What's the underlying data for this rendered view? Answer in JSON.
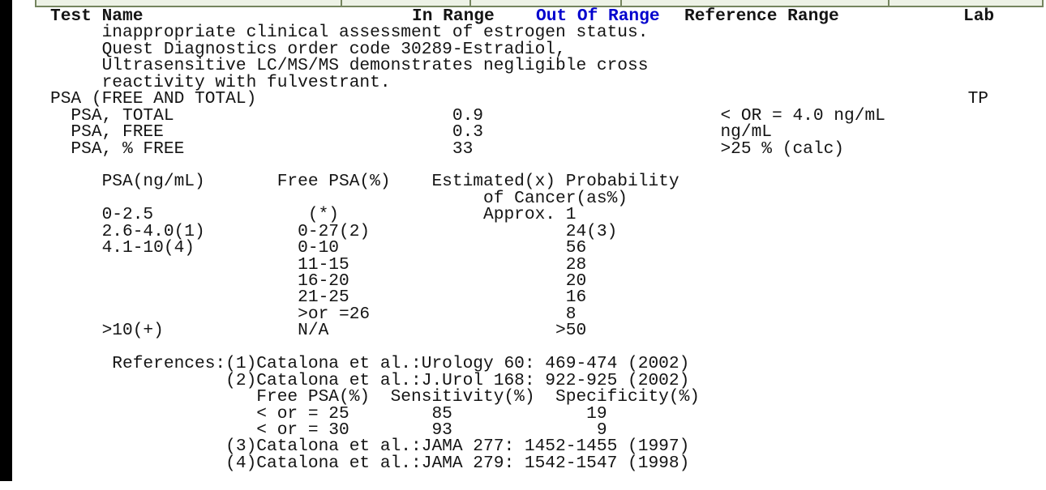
{
  "chrome": {
    "left_bar_color": "#000000",
    "strip_fill": "#edf2e6",
    "strip_border_color": "#75855f"
  },
  "columns_header": {
    "test_name": "Test Name",
    "in_range": "In Range",
    "out_of_range": "Out Of Range",
    "out_of_range_color": "#0000cd",
    "reference_range": "Reference Range",
    "lab": "Lab"
  },
  "results": {
    "panel_name": "PSA (FREE AND TOTAL)",
    "panel_lab": "TP",
    "tests": [
      {
        "name": "PSA, TOTAL",
        "in_range": "0.9",
        "reference_range": "< OR = 4.0 ng/mL"
      },
      {
        "name": "PSA, FREE",
        "in_range": "0.3",
        "reference_range": "ng/mL"
      },
      {
        "name": "PSA, % FREE",
        "in_range": "33",
        "reference_range": ">25 % (calc)"
      }
    ]
  },
  "lines": [
    "     inappropriate clinical assessment of estrogen status.",
    "     Quest Diagnostics order code 30289-Estradiol,",
    "     Ultrasensitive LC/MS/MS demonstrates negligible cross",
    "     reactivity with fulvestrant.",
    "PSA (FREE AND TOTAL)                                                                     TP",
    "  PSA, TOTAL                           0.9                       < OR = 4.0 ng/mL",
    "  PSA, FREE                            0.3                       ng/mL",
    "  PSA, % FREE                          33                        >25 % (calc)",
    "",
    "     PSA(ng/mL)       Free PSA(%)    Estimated(x) Probability",
    "                                          of Cancer(as%)",
    "     0-2.5               (*)              Approx. 1",
    "     2.6-4.0(1)         0-27(2)                   24(3)",
    "     4.1-10(4)          0-10                      56",
    "                        11-15                     28",
    "                        16-20                     20",
    "                        21-25                     16",
    "                        >or =26                   8",
    "     >10(+)             N/A                      >50",
    "",
    "      References:(1)Catalona et al.:Urology 60: 469-474 (2002)",
    "                 (2)Catalona et al.:J.Urol 168: 922-925 (2002)",
    "                    Free PSA(%)  Sensitivity(%)  Specificity(%)",
    "                    < or = 25        85             19",
    "                    < or = 30        93              9",
    "                 (3)Catalona et al.:JAMA 277: 1452-1455 (1997)",
    "                 (4)Catalona et al.:JAMA 279: 1542-1547 (1998)"
  ]
}
